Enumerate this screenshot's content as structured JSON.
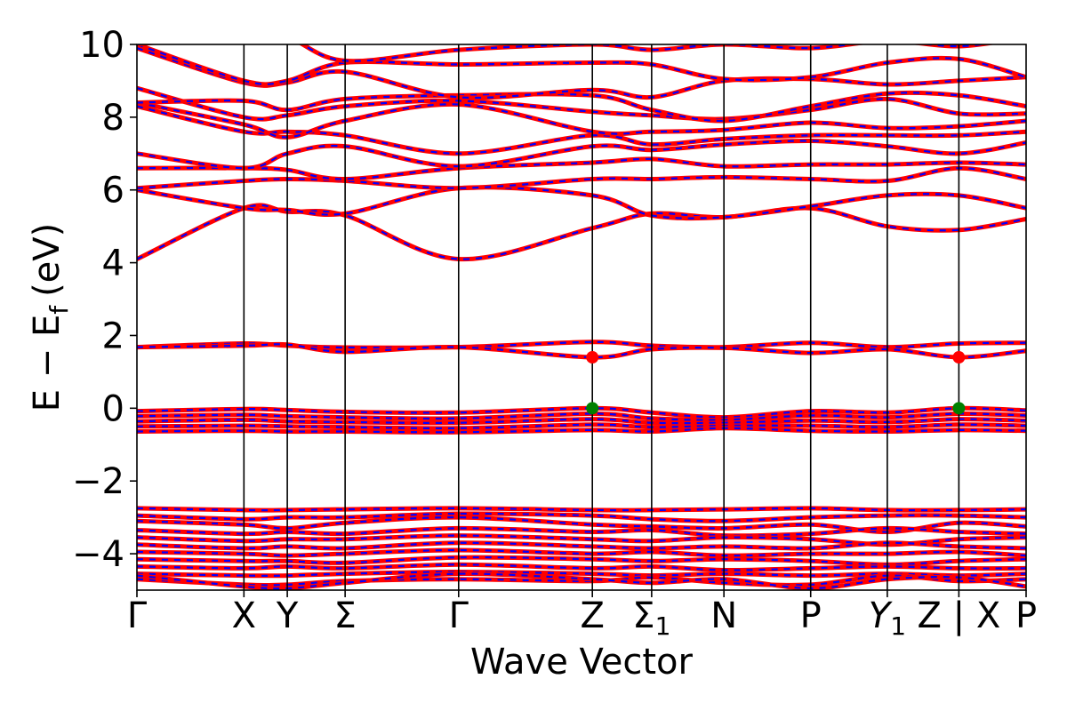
{
  "chart_data": {
    "type": "line",
    "title": "",
    "xlabel": "Wave Vector",
    "ylabel": "E − E",
    "ylabel_sub": "f",
    "ylabel_unit": "(eV)",
    "ylim": [
      -5,
      10
    ],
    "yticks": [
      -4,
      -2,
      0,
      2,
      4,
      6,
      8,
      10
    ],
    "xlim": [
      0,
      12.3
    ],
    "grid": false,
    "legend": "none",
    "colors": {
      "line_primary": "#ff0000",
      "line_secondary": "#0000ff",
      "cbm_marker": "#ff0000",
      "vbm_marker": "#008000"
    },
    "high_symmetry_points": [
      {
        "x": 0.0,
        "label": "Γ"
      },
      {
        "x": 1.48,
        "label": "X"
      },
      {
        "x": 2.08,
        "label": "Y"
      },
      {
        "x": 2.88,
        "label": "Σ"
      },
      {
        "x": 4.45,
        "label": "Γ"
      },
      {
        "x": 6.3,
        "label": "Z"
      },
      {
        "x": 7.12,
        "label": "Σ",
        "sub": "1"
      },
      {
        "x": 8.12,
        "label": "N"
      },
      {
        "x": 9.32,
        "label": "P"
      },
      {
        "x": 10.38,
        "label": "Y",
        "sub": "1",
        "italic": true
      },
      {
        "x": 11.37,
        "label": "Z | X"
      },
      {
        "x": 12.3,
        "label": "P"
      }
    ],
    "band_edges": {
      "vbm": [
        {
          "x": 6.3,
          "y": 0.0
        },
        {
          "x": 11.37,
          "y": 0.0
        }
      ],
      "cbm": [
        {
          "x": 6.3,
          "y": 1.4
        },
        {
          "x": 11.37,
          "y": 1.4
        }
      ]
    },
    "bands": {
      "conduction_isolated": [
        [
          1.68,
          1.78,
          1.72,
          1.67,
          1.68,
          1.82,
          1.72,
          1.68,
          1.8,
          1.68,
          1.78,
          1.8
        ],
        [
          1.68,
          1.72,
          1.75,
          1.55,
          1.68,
          1.4,
          1.62,
          1.66,
          1.52,
          1.62,
          1.4,
          1.58
        ]
      ],
      "valence_top": [
        [
          -0.08,
          -0.02,
          -0.05,
          -0.1,
          -0.12,
          0.0,
          -0.12,
          -0.25,
          -0.08,
          -0.12,
          0.0,
          -0.06
        ],
        [
          -0.22,
          -0.18,
          -0.22,
          -0.25,
          -0.28,
          -0.15,
          -0.28,
          -0.32,
          -0.2,
          -0.25,
          -0.15,
          -0.2
        ],
        [
          -0.36,
          -0.32,
          -0.36,
          -0.38,
          -0.4,
          -0.3,
          -0.4,
          -0.4,
          -0.34,
          -0.38,
          -0.3,
          -0.34
        ],
        [
          -0.5,
          -0.48,
          -0.5,
          -0.52,
          -0.55,
          -0.45,
          -0.52,
          -0.48,
          -0.48,
          -0.52,
          -0.45,
          -0.48
        ],
        [
          -0.64,
          -0.62,
          -0.64,
          -0.64,
          -0.66,
          -0.6,
          -0.64,
          -0.55,
          -0.62,
          -0.64,
          -0.6,
          -0.62
        ]
      ],
      "conduction_upper": [
        [
          4.1,
          5.5,
          5.4,
          5.3,
          4.1,
          4.95,
          5.35,
          5.25,
          5.5,
          5.0,
          4.9,
          5.2
        ],
        [
          6.0,
          5.5,
          5.45,
          5.35,
          6.05,
          5.85,
          5.3,
          5.25,
          5.55,
          5.85,
          5.85,
          5.5
        ],
        [
          6.05,
          6.25,
          6.3,
          6.25,
          6.05,
          6.3,
          6.3,
          6.35,
          6.3,
          6.25,
          6.6,
          6.3
        ],
        [
          6.6,
          6.6,
          6.55,
          6.3,
          6.6,
          6.75,
          6.85,
          6.65,
          6.7,
          6.7,
          6.75,
          6.7
        ],
        [
          7.0,
          6.6,
          7.0,
          7.2,
          6.65,
          7.2,
          7.1,
          7.25,
          7.35,
          7.2,
          7.0,
          7.3
        ],
        [
          8.3,
          7.6,
          7.6,
          7.5,
          7.0,
          7.5,
          7.25,
          7.4,
          7.5,
          7.5,
          7.5,
          7.6
        ],
        [
          8.4,
          7.8,
          7.45,
          7.9,
          8.35,
          7.6,
          7.6,
          7.65,
          7.85,
          7.7,
          7.75,
          7.9
        ],
        [
          8.8,
          8.0,
          8.05,
          8.3,
          8.45,
          8.15,
          8.05,
          7.95,
          8.2,
          8.5,
          8.1,
          8.1
        ],
        [
          8.4,
          8.45,
          8.2,
          8.5,
          8.6,
          8.6,
          8.2,
          7.9,
          8.3,
          8.65,
          8.6,
          8.3
        ],
        [
          9.9,
          8.95,
          8.95,
          9.25,
          8.55,
          8.75,
          8.55,
          9.0,
          9.05,
          8.9,
          9.0,
          9.1
        ],
        [
          10.0,
          9.0,
          9.0,
          9.5,
          9.45,
          9.5,
          9.45,
          9.05,
          9.1,
          9.5,
          9.6,
          9.1
        ],
        [
          10.0,
          10.3,
          10.2,
          9.55,
          9.85,
          10.0,
          9.85,
          10.0,
          9.9,
          10.1,
          9.95,
          10.2
        ]
      ],
      "valence_lower": [
        [
          -2.75,
          -2.8,
          -2.8,
          -2.78,
          -2.75,
          -2.8,
          -2.8,
          -2.78,
          -2.75,
          -2.8,
          -2.8,
          -2.78
        ],
        [
          -2.95,
          -3.05,
          -3.0,
          -3.0,
          -2.9,
          -2.95,
          -3.05,
          -3.1,
          -3.0,
          -2.95,
          -2.95,
          -3.0
        ],
        [
          -3.1,
          -3.2,
          -3.3,
          -3.15,
          -3.0,
          -3.2,
          -3.25,
          -3.3,
          -3.2,
          -3.4,
          -3.15,
          -3.25
        ],
        [
          -3.35,
          -3.45,
          -3.4,
          -3.45,
          -3.3,
          -3.4,
          -3.35,
          -3.5,
          -3.45,
          -3.3,
          -3.4,
          -3.45
        ],
        [
          -3.55,
          -3.65,
          -3.6,
          -3.6,
          -3.5,
          -3.6,
          -3.65,
          -3.55,
          -3.6,
          -3.75,
          -3.6,
          -3.55
        ],
        [
          -3.75,
          -3.85,
          -3.8,
          -3.85,
          -3.7,
          -3.8,
          -3.85,
          -3.8,
          -3.85,
          -3.7,
          -3.8,
          -3.85
        ],
        [
          -3.95,
          -4.0,
          -4.05,
          -4.0,
          -3.9,
          -4.0,
          -3.95,
          -4.05,
          -4.0,
          -4.0,
          -3.95,
          -4.05
        ],
        [
          -4.15,
          -4.2,
          -4.2,
          -4.25,
          -4.1,
          -4.15,
          -4.2,
          -4.15,
          -4.2,
          -4.3,
          -4.2,
          -4.15
        ],
        [
          -4.35,
          -4.4,
          -4.35,
          -4.4,
          -4.3,
          -4.4,
          -4.35,
          -4.45,
          -4.4,
          -4.35,
          -4.4,
          -4.4
        ],
        [
          -4.55,
          -4.6,
          -4.6,
          -4.55,
          -4.5,
          -4.55,
          -4.6,
          -4.55,
          -4.6,
          -4.55,
          -4.6,
          -4.55
        ],
        [
          -4.7,
          -4.85,
          -4.85,
          -4.75,
          -4.7,
          -4.75,
          -4.65,
          -4.8,
          -4.85,
          -4.6,
          -4.75,
          -4.7
        ],
        [
          -4.6,
          -4.9,
          -4.95,
          -4.8,
          -4.55,
          -4.7,
          -4.8,
          -4.7,
          -4.95,
          -4.7,
          -4.65,
          -4.9
        ]
      ]
    }
  }
}
